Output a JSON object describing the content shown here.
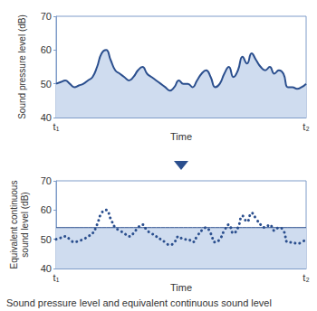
{
  "caption": "Sound pressure level and equivalent continuous sound level",
  "chart_data": [
    {
      "type": "area",
      "ylabel": "Sound pressure level (dB)",
      "xlabel": "Time",
      "categories": [
        "t₁",
        null,
        null,
        null,
        null,
        null,
        null,
        null,
        null,
        null,
        null,
        null,
        null,
        null,
        null,
        null,
        null,
        null,
        null,
        null,
        null,
        null,
        null,
        null,
        null,
        null,
        null,
        null,
        null,
        null,
        null,
        null,
        null,
        null,
        null,
        null,
        null,
        null,
        null,
        null,
        null,
        null,
        null,
        null,
        null,
        null,
        null,
        null,
        null,
        null,
        null,
        null,
        null,
        null,
        null,
        "t₂"
      ],
      "values": [
        50,
        50.5,
        51,
        50,
        49,
        49.5,
        50,
        51,
        52,
        55,
        59,
        60,
        57,
        54,
        53,
        52,
        51,
        52,
        54,
        55,
        53,
        52,
        51,
        50,
        49,
        48,
        49,
        51,
        50,
        50,
        49,
        51,
        53,
        54,
        52,
        49,
        50,
        53,
        55,
        52,
        54,
        58,
        56,
        59,
        57,
        55,
        54,
        55,
        53,
        54,
        53,
        49,
        49,
        48.5,
        49,
        50
      ],
      "color": "#2b4f8e",
      "ylim": [
        40,
        70
      ],
      "yticks": [
        40,
        50,
        60,
        70
      ]
    },
    {
      "type": "line",
      "ylabel": "Equivalent continuous\nsound level (dB)",
      "xlabel": "Time",
      "categories": [
        "t₁",
        null,
        null,
        null,
        null,
        null,
        null,
        null,
        null,
        null,
        null,
        null,
        null,
        null,
        null,
        null,
        null,
        null,
        null,
        null,
        null,
        null,
        null,
        null,
        null,
        null,
        null,
        null,
        null,
        null,
        null,
        null,
        null,
        null,
        null,
        null,
        null,
        null,
        null,
        null,
        null,
        null,
        null,
        null,
        null,
        null,
        null,
        null,
        null,
        null,
        null,
        null,
        null,
        null,
        null,
        "t₂"
      ],
      "values": [
        50,
        50.5,
        51,
        50,
        49,
        49.5,
        50,
        51,
        52,
        55,
        59,
        60,
        57,
        54,
        53,
        52,
        51,
        52,
        54,
        55,
        53,
        52,
        51,
        50,
        49,
        48,
        49,
        51,
        50,
        50,
        49,
        51,
        53,
        54,
        52,
        49,
        50,
        53,
        55,
        52,
        54,
        58,
        56,
        59,
        57,
        55,
        54,
        55,
        53,
        54,
        53,
        49,
        49,
        48.5,
        49,
        50
      ],
      "level": 54,
      "line_style": "dotted",
      "color": "#2b4f8e",
      "ylim": [
        40,
        70
      ],
      "yticks": [
        40,
        50,
        60,
        70
      ]
    }
  ]
}
